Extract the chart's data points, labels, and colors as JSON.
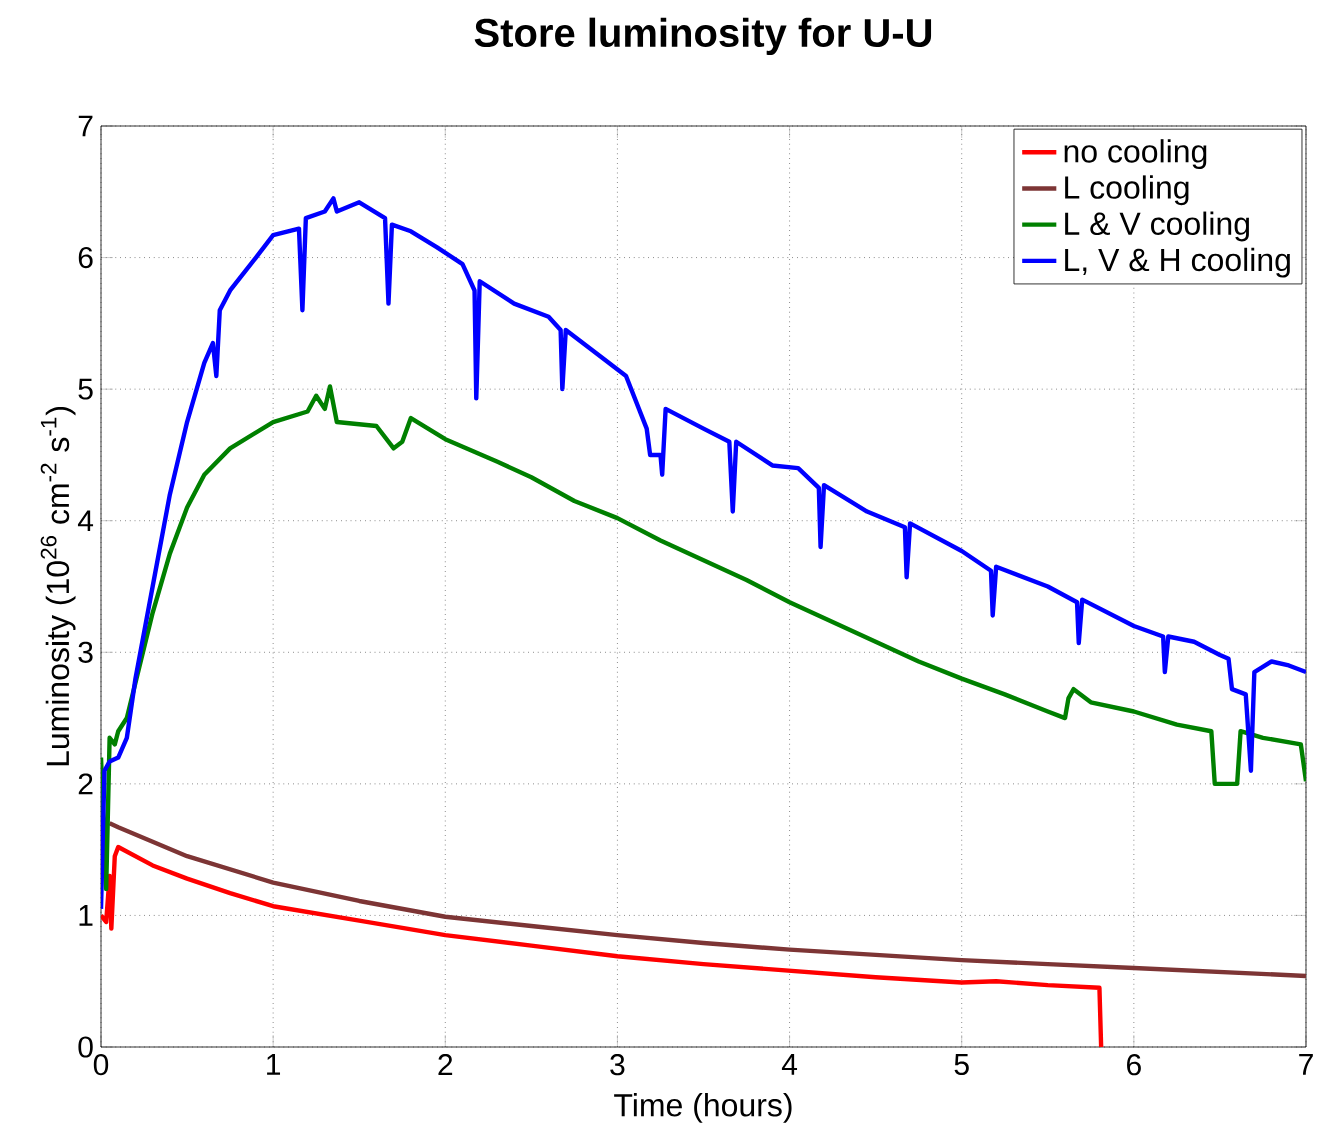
{
  "chart_data": {
    "type": "line",
    "title": "Store luminosity for U-U",
    "xlabel": "Time (hours)",
    "ylabel": "Luminosity (10$^{26}$ cm$^{-2}$ s$^{-1}$)",
    "xlim": [
      0,
      7
    ],
    "ylim": [
      0,
      7
    ],
    "xticks": [
      0,
      1,
      2,
      3,
      4,
      5,
      6,
      7
    ],
    "yticks": [
      0,
      1,
      2,
      3,
      4,
      5,
      6,
      7
    ],
    "grid": true,
    "legend": "top right",
    "marker": "none",
    "line_style": "solid",
    "series": [
      {
        "name": "no cooling",
        "color": "#ff0000",
        "x": [
          0,
          0.03,
          0.05,
          0.06,
          0.08,
          0.1,
          0.3,
          0.5,
          0.75,
          1,
          1.5,
          2,
          2.5,
          3,
          3.5,
          4,
          4.5,
          5,
          5.2,
          5.5,
          5.8,
          5.81
        ],
        "values": [
          1.0,
          0.95,
          1.3,
          0.9,
          1.45,
          1.52,
          1.38,
          1.28,
          1.17,
          1.07,
          0.96,
          0.85,
          0.77,
          0.69,
          0.63,
          0.58,
          0.53,
          0.49,
          0.5,
          0.47,
          0.45,
          0
        ]
      },
      {
        "name": "L cooling",
        "color": "#7d3535",
        "x": [
          0.05,
          0.1,
          0.5,
          1,
          1.5,
          2,
          2.5,
          3,
          3.5,
          4,
          4.5,
          5,
          5.5,
          6,
          6.5,
          7
        ],
        "values": [
          1.7,
          1.67,
          1.45,
          1.25,
          1.11,
          0.99,
          0.92,
          0.85,
          0.79,
          0.74,
          0.7,
          0.66,
          0.63,
          0.6,
          0.57,
          0.54
        ]
      },
      {
        "name": "L & V cooling",
        "color": "#008000",
        "x": [
          0,
          0.03,
          0.05,
          0.08,
          0.1,
          0.15,
          0.3,
          0.4,
          0.5,
          0.6,
          0.75,
          1,
          1.2,
          1.25,
          1.3,
          1.33,
          1.37,
          1.6,
          1.7,
          1.75,
          1.8,
          2,
          2.3,
          2.5,
          2.75,
          3,
          3.25,
          3.5,
          3.75,
          4,
          4.25,
          4.5,
          4.75,
          5,
          5.25,
          5.5,
          5.6,
          5.62,
          5.65,
          5.75,
          6,
          6.25,
          6.45,
          6.47,
          6.6,
          6.62,
          6.75,
          6.97,
          7
        ],
        "values": [
          2.2,
          1.2,
          2.35,
          2.3,
          2.4,
          2.5,
          3.3,
          3.75,
          4.1,
          4.35,
          4.55,
          4.75,
          4.83,
          4.95,
          4.85,
          5.02,
          4.75,
          4.72,
          4.55,
          4.6,
          4.78,
          4.62,
          4.45,
          4.33,
          4.15,
          4.02,
          3.85,
          3.7,
          3.55,
          3.38,
          3.23,
          3.08,
          2.93,
          2.8,
          2.68,
          2.55,
          2.5,
          2.65,
          2.72,
          2.62,
          2.55,
          2.45,
          2.4,
          2.0,
          2.0,
          2.4,
          2.35,
          2.3,
          2.02
        ]
      },
      {
        "name": "L, V & H cooling",
        "color": "#0000ff",
        "x": [
          0,
          0.02,
          0.05,
          0.1,
          0.15,
          0.2,
          0.3,
          0.4,
          0.5,
          0.6,
          0.65,
          0.67,
          0.69,
          0.75,
          0.9,
          1,
          1.15,
          1.17,
          1.19,
          1.3,
          1.35,
          1.37,
          1.5,
          1.65,
          1.67,
          1.69,
          1.8,
          1.95,
          2.1,
          2.17,
          2.18,
          2.2,
          2.4,
          2.6,
          2.67,
          2.68,
          2.7,
          2.9,
          3.05,
          3.17,
          3.19,
          3.25,
          3.26,
          3.28,
          3.5,
          3.65,
          3.67,
          3.69,
          3.9,
          4.05,
          4.17,
          4.18,
          4.2,
          4.45,
          4.67,
          4.68,
          4.7,
          5.0,
          5.17,
          5.18,
          5.2,
          5.5,
          5.67,
          5.68,
          5.7,
          6.0,
          6.17,
          6.18,
          6.2,
          6.35,
          6.5,
          6.55,
          6.57,
          6.65,
          6.68,
          6.7,
          6.8,
          6.9,
          7
        ],
        "values": [
          1.05,
          2.1,
          2.17,
          2.2,
          2.35,
          2.8,
          3.5,
          4.2,
          4.75,
          5.2,
          5.35,
          5.1,
          5.6,
          5.75,
          6.0,
          6.17,
          6.22,
          5.6,
          6.3,
          6.35,
          6.45,
          6.35,
          6.42,
          6.3,
          5.65,
          6.25,
          6.2,
          6.08,
          5.95,
          5.75,
          4.93,
          5.82,
          5.65,
          5.55,
          5.45,
          5.0,
          5.45,
          5.25,
          5.1,
          4.7,
          4.5,
          4.5,
          4.35,
          4.85,
          4.7,
          4.6,
          4.07,
          4.6,
          4.42,
          4.4,
          4.25,
          3.8,
          4.27,
          4.07,
          3.95,
          3.57,
          3.98,
          3.77,
          3.62,
          3.28,
          3.65,
          3.5,
          3.38,
          3.07,
          3.4,
          3.2,
          3.12,
          2.85,
          3.12,
          3.08,
          2.98,
          2.95,
          2.72,
          2.68,
          2.1,
          2.85,
          2.93,
          2.9,
          2.85
        ]
      }
    ]
  }
}
